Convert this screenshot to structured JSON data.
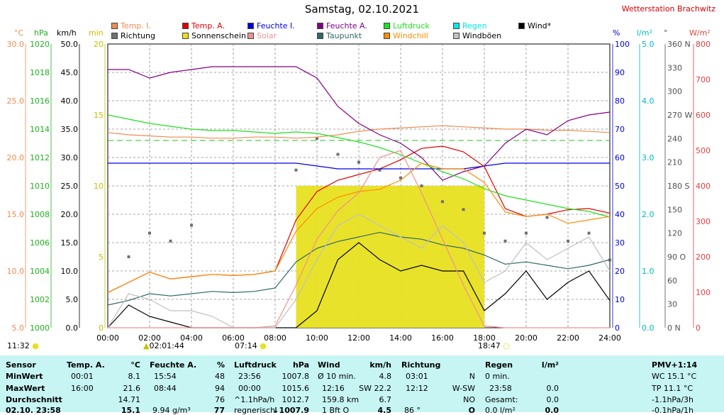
{
  "title": "Samstag, 02.10.2021",
  "station": "Wetterstation Brachwitz",
  "legend": [
    {
      "label": "Temp. I.",
      "color": "#f08a50"
    },
    {
      "label": "Richtung",
      "color": "#707070"
    },
    {
      "label": "Temp. A.",
      "color": "#e00000"
    },
    {
      "label": "Sonnenschein",
      "color": "#e8e020"
    },
    {
      "label": "Feuchte I.",
      "color": "#0000e0"
    },
    {
      "label": "Solar",
      "color": "#f09090"
    },
    {
      "label": "Feuchte A.",
      "color": "#800080"
    },
    {
      "label": "Taupunkt",
      "color": "#306868"
    },
    {
      "label": "Luftdruck",
      "color": "#20e020"
    },
    {
      "label": "Windchill",
      "color": "#ff8c00"
    },
    {
      "label": "Regen",
      "color": "#00e8e8"
    },
    {
      "label": "Windböen",
      "color": "#c0c0c0"
    },
    {
      "label": "Wind*",
      "color": "#000000"
    }
  ],
  "axes": {
    "temp": {
      "unit": "°C",
      "color": "#f08a50",
      "ticks": [
        "30.0",
        "25.0",
        "20.0",
        "15.0",
        "10.0",
        "5.0"
      ]
    },
    "hpa": {
      "unit": "hPa",
      "color": "#20b020",
      "ticks": [
        "1020",
        "1018",
        "1016",
        "1014",
        "1012",
        "1010",
        "1008",
        "1006",
        "1004",
        "1002",
        "1000"
      ]
    },
    "kmh": {
      "unit": "km/h",
      "color": "#000000",
      "ticks": [
        "50.0",
        "45.0",
        "40.0",
        "35.0",
        "30.0",
        "25.0",
        "20.0",
        "15.0",
        "10.0",
        "5.0",
        "0.0"
      ]
    },
    "min": {
      "unit": "min",
      "color": "#c8c000",
      "ticks": [
        "20",
        "15",
        "10",
        "5",
        "0"
      ]
    },
    "pct": {
      "unit": "%",
      "color": "#0000e0",
      "ticks": [
        "100",
        "90",
        "80",
        "70",
        "60",
        "50",
        "40",
        "30",
        "20",
        "10",
        "0"
      ]
    },
    "rain": {
      "unit": "l/m²",
      "color": "#00b8c8",
      "ticks": [
        "5.0",
        "4.0",
        "3.0",
        "2.0",
        "1.0",
        "0.0"
      ]
    },
    "deg": {
      "unit": "°",
      "color": "#505050",
      "ticks": [
        "360 N",
        "330",
        "300",
        "270 W",
        "240",
        "210",
        "180 S",
        "150",
        "120",
        "90 O",
        "60",
        "30",
        "0 N"
      ]
    },
    "wm2": {
      "unit": "W/m²",
      "color": "#e04040",
      "ticks": [
        "800",
        "700",
        "600",
        "500",
        "400",
        "300",
        "200",
        "100",
        "0"
      ]
    },
    "time_ticks": [
      "00:00",
      "02:00",
      "04:00",
      "06:00",
      "08:00",
      "10:00",
      "12:00",
      "14:00",
      "16:00",
      "18:00",
      "20:00",
      "22:00",
      "24:00"
    ]
  },
  "events": {
    "min_temp_time": "02:01:44",
    "sunrise": "07:14",
    "sunset": "18:47",
    "clock": "11:32"
  },
  "chart_data": {
    "type": "line",
    "title": "Samstag, 02.10.2021",
    "x_unit": "hours",
    "x": [
      0,
      1,
      2,
      3,
      4,
      5,
      6,
      7,
      8,
      9,
      10,
      11,
      12,
      13,
      14,
      15,
      16,
      17,
      18,
      19,
      20,
      21,
      22,
      23,
      24
    ],
    "series": [
      {
        "name": "Temp. I.",
        "axis": "°C",
        "values": [
          22.2,
          22.0,
          21.9,
          21.8,
          21.8,
          21.7,
          21.7,
          21.8,
          21.8,
          21.7,
          21.8,
          22.0,
          22.3,
          22.5,
          22.6,
          22.7,
          22.8,
          22.7,
          22.6,
          22.5,
          22.5,
          22.4,
          22.4,
          22.3,
          22.2
        ]
      },
      {
        "name": "Temp. A.",
        "axis": "°C",
        "values": [
          8.1,
          9.0,
          9.9,
          9.3,
          9.5,
          9.7,
          9.6,
          9.7,
          10.0,
          14.5,
          17.0,
          18.0,
          18.5,
          19.0,
          19.8,
          20.8,
          21.0,
          20.5,
          19.2,
          15.5,
          14.8,
          15.0,
          15.4,
          15.5,
          15.1
        ]
      },
      {
        "name": "Feuchte I.",
        "axis": "%",
        "values": [
          58,
          58,
          58,
          58,
          58,
          58,
          58,
          58,
          58,
          58,
          57,
          56,
          56,
          56,
          56,
          56,
          56,
          56,
          57,
          58,
          58,
          58,
          58,
          58,
          58
        ]
      },
      {
        "name": "Feuchte A.",
        "axis": "%",
        "values": [
          91,
          91,
          88,
          90,
          91,
          92,
          92,
          92,
          92,
          92,
          88,
          78,
          72,
          68,
          65,
          60,
          52,
          55,
          57,
          65,
          70,
          68,
          73,
          75,
          76
        ]
      },
      {
        "name": "Luftdruck",
        "axis": "hPa",
        "values": [
          1015.0,
          1014.7,
          1014.4,
          1014.2,
          1014.0,
          1013.9,
          1013.9,
          1013.8,
          1013.7,
          1013.8,
          1013.7,
          1013.4,
          1013.1,
          1012.7,
          1012.2,
          1011.6,
          1011.0,
          1010.5,
          1009.8,
          1009.3,
          1009.0,
          1008.7,
          1008.4,
          1008.2,
          1007.8
        ]
      },
      {
        "name": "Taupunkt",
        "axis": "°C",
        "values": [
          7.0,
          7.4,
          8.0,
          7.8,
          8.0,
          8.2,
          8.1,
          8.2,
          8.5,
          10.8,
          12.0,
          12.6,
          13.0,
          13.4,
          13.0,
          12.8,
          12.3,
          12.0,
          11.4,
          10.6,
          10.8,
          10.5,
          10.2,
          10.5,
          11.0
        ]
      },
      {
        "name": "Wind*",
        "axis": "km/h",
        "values": [
          0,
          4,
          2,
          1,
          0,
          0,
          0,
          0,
          0,
          0,
          3,
          12,
          15,
          12,
          10,
          11,
          10,
          10,
          3,
          6,
          10,
          5,
          8,
          10,
          4.8
        ]
      },
      {
        "name": "Windböen",
        "axis": "km/h",
        "values": [
          0,
          6,
          5,
          3,
          3,
          2,
          0,
          0,
          0,
          5,
          12,
          18,
          20,
          18,
          16,
          14,
          18,
          15,
          8,
          10,
          15,
          12,
          14,
          16,
          10
        ]
      },
      {
        "name": "Windchill",
        "axis": "°C",
        "values": [
          8.1,
          9.0,
          9.9,
          9.3,
          9.5,
          9.7,
          9.6,
          9.7,
          10.0,
          13.5,
          15.5,
          16.5,
          17.0,
          17.2,
          18.0,
          19.5,
          19.0,
          19.0,
          17.8,
          15.2,
          14.8,
          15.0,
          14.2,
          14.5,
          14.8
        ]
      },
      {
        "name": "Solar",
        "axis": "W/m²",
        "values": [
          0,
          0,
          0,
          0,
          0,
          0,
          0,
          0,
          5,
          120,
          250,
          330,
          380,
          480,
          500,
          380,
          250,
          120,
          5,
          0,
          0,
          0,
          0,
          0,
          0
        ]
      },
      {
        "name": "Sonnenschein",
        "axis": "min",
        "values": [
          0,
          0,
          0,
          0,
          0,
          0,
          0,
          0,
          0,
          10,
          10,
          10,
          10,
          10,
          10,
          10,
          10,
          10,
          0,
          0,
          0,
          0,
          0,
          0,
          0
        ]
      },
      {
        "name": "Richtung",
        "axis": "°",
        "values": [
          0,
          90,
          120,
          110,
          130,
          0,
          0,
          0,
          0,
          200,
          240,
          220,
          210,
          200,
          190,
          180,
          160,
          150,
          120,
          110,
          120,
          140,
          110,
          120,
          86
        ]
      }
    ]
  },
  "table": {
    "labels": {
      "title": "Sensor",
      "min": "MinWert",
      "max": "MaxWert",
      "avg": "Durchschnitt",
      "now": "02.10. 23:58"
    },
    "temp": {
      "title": "Temp. A.",
      "unit": "°C",
      "min_time": "00:01",
      "min_val": "8.1",
      "max_time": "16:00",
      "max_val": "21.6",
      "avg": "14.71",
      "now": "15.1"
    },
    "feuchte": {
      "title": "Feuchte A.",
      "unit": "%",
      "min_time": "15:54",
      "min_val": "48",
      "max_time": "08:44",
      "max_val": "94",
      "avg": "76",
      "now_abs": "9.94 g/m³",
      "now": "77"
    },
    "druck": {
      "title": "Luftdruck",
      "unit": "hPa",
      "min_time": "23:56",
      "min_val": "1007.8",
      "max_time": "00:00",
      "max_val": "1015.6",
      "avg_label": "^1.1hPa/h",
      "avg": "1012.7",
      "now_label": "regnerisch",
      "now": "↓1007.9"
    },
    "wind": {
      "title": "Wind",
      "unit": "km/h",
      "r1_label": "Ø 10 min.",
      "r1_val": "4.8",
      "r2_label": "12:16",
      "r2_dir": "SW 22.2",
      "r3_label": "159.8 km",
      "r3_val": "6.7",
      "r4_label": "1 Bft O",
      "r4_val": "4.5"
    },
    "richtung": {
      "title": "Richtung",
      "r1_time": "03:01",
      "r1_val": "N",
      "r2_time": "12:12",
      "r2_val": "W-SW",
      "r3_val": "NO",
      "r4_label": "86 °",
      "r4_val": "O"
    },
    "regen": {
      "title": "Regen",
      "unit": "l/m²",
      "r1": "0 min.",
      "r2_time": "23:58",
      "r2_val": "0.0",
      "r3_label": "Gesamt:",
      "r3_val": "0.0",
      "r4_label": "0.0 l/m²",
      "r4_val": "0.0"
    },
    "pmv": {
      "title": "PMV+1:14",
      "r1": "WC 15.1 °C",
      "r2": "TP 11.1 °C",
      "r3": "-1.1hPa/3h",
      "r4": "-0.1hPa/1h"
    }
  }
}
